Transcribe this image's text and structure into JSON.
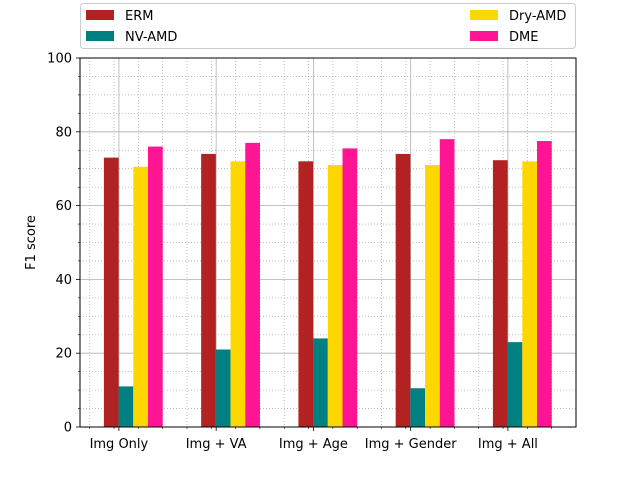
{
  "chart_data": {
    "type": "bar",
    "categories": [
      "Img Only",
      "Img + VA",
      "Img + Age",
      "Img + Gender",
      "Img + All"
    ],
    "series": [
      {
        "name": "ERM",
        "color": "#b22222",
        "values": [
          73,
          74,
          72,
          74,
          72.3
        ]
      },
      {
        "name": "NV-AMD",
        "color": "#008080",
        "values": [
          11,
          21,
          24,
          10.5,
          23
        ]
      },
      {
        "name": "Dry-AMD",
        "color": "#ffd700",
        "values": [
          70.5,
          72,
          71,
          71,
          72
        ]
      },
      {
        "name": "DME",
        "color": "#ff1493",
        "values": [
          76,
          77,
          75.5,
          78,
          77.5
        ]
      }
    ],
    "xlabel": "",
    "ylabel": "F1 score",
    "ylim": [
      0,
      100
    ],
    "yticks": [
      "0",
      "20",
      "40",
      "60",
      "80",
      "100"
    ],
    "grid": true,
    "legend_placement": "top, above plot, 2 columns"
  }
}
